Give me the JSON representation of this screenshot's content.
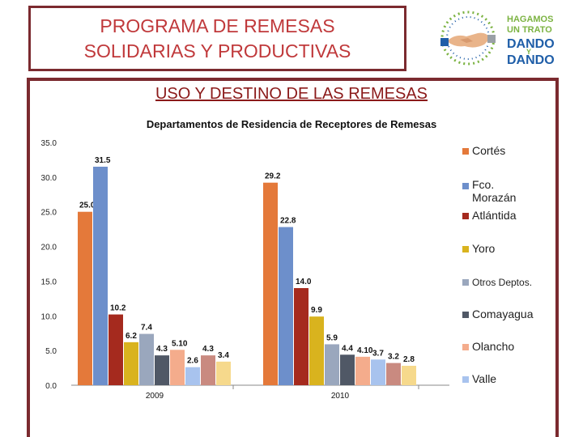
{
  "header": {
    "title": "PROGRAMA DE REMESAS\nSOLIDARIAS Y PRODUCTIVAS",
    "logo_text": [
      "HAGAMOS",
      "UN TRATO",
      "DANDO",
      "Y",
      "DANDO"
    ]
  },
  "subtitle": "USO Y DESTINO DE LAS REMESAS",
  "colors": {
    "frame": "#7b2a2f",
    "title_text": "#c0393b",
    "subtitle_text": "#8b1a1a",
    "logo_blue": "#1f5ea8",
    "logo_green": "#7cb342"
  },
  "chart_data": {
    "type": "bar",
    "title": "Departamentos de Residencia de Receptores de Remesas",
    "categories": [
      "2009",
      "2010"
    ],
    "ylim": [
      0,
      35
    ],
    "yticks": [
      "0.0",
      "5.0",
      "10.0",
      "15.0",
      "20.0",
      "25.0",
      "30.0",
      "35.0"
    ],
    "legend_position": "right",
    "series": [
      {
        "name": "Cortés",
        "color": "#e4793a",
        "values": [
          25.0,
          29.2
        ],
        "labels": [
          "25.0",
          "29.2"
        ]
      },
      {
        "name": "Fco. Morazán",
        "color": "#6d8fcb",
        "values": [
          31.5,
          22.8
        ],
        "labels": [
          "31.5",
          "22.8"
        ]
      },
      {
        "name": "Atlántida",
        "color": "#a52a1e",
        "values": [
          10.2,
          14.0
        ],
        "labels": [
          "10.2",
          "14.0"
        ]
      },
      {
        "name": "Yoro",
        "color": "#d9b31e",
        "values": [
          6.2,
          9.9
        ],
        "labels": [
          "6.2",
          "9.9"
        ]
      },
      {
        "name": "Otros Deptos.",
        "color": "#9aa7bd",
        "values": [
          7.4,
          5.9
        ],
        "labels": [
          "7.4",
          "5.9"
        ]
      },
      {
        "name": "Comayagua",
        "color": "#505866",
        "values": [
          4.3,
          4.4
        ],
        "labels": [
          "4.3",
          "4.4"
        ]
      },
      {
        "name": "Olancho",
        "color": "#f4ac8c",
        "values": [
          5.1,
          4.1
        ],
        "labels": [
          "5.10",
          "4.10"
        ]
      },
      {
        "name": "Valle",
        "color": "#a8c3ee",
        "values": [
          2.6,
          3.7
        ],
        "labels": [
          "2.6",
          "3.7"
        ]
      },
      {
        "name": "",
        "color": "#c98a80",
        "values": [
          4.3,
          3.2
        ],
        "labels": [
          "4.3",
          "3.2"
        ]
      },
      {
        "name": "",
        "color": "#f6d98c",
        "values": [
          3.4,
          2.8
        ],
        "labels": [
          "3.4",
          "2.8"
        ]
      }
    ]
  }
}
